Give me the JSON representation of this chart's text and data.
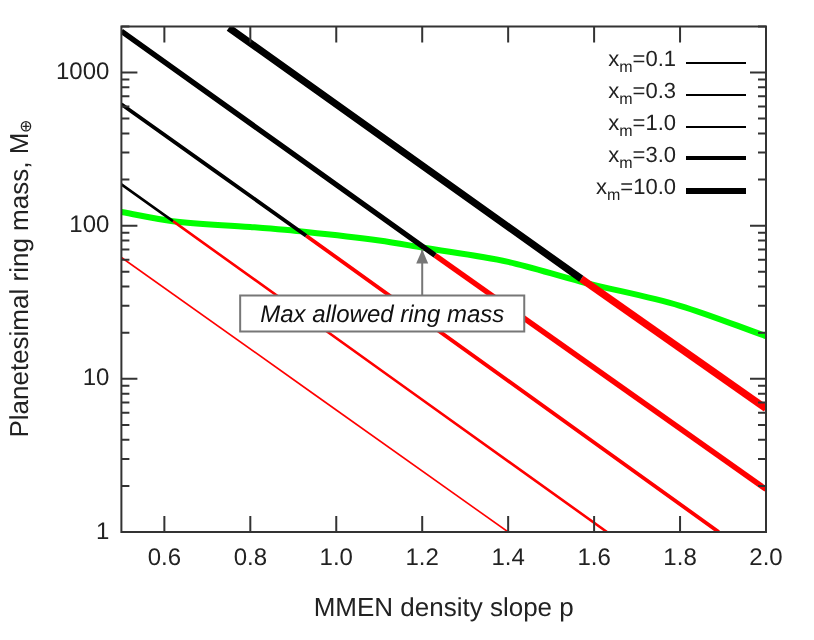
{
  "chart_data": {
    "type": "line",
    "xlabel": "MMEN density slope p",
    "ylabel": "Planetesimal ring mass, M$_{⊕}$",
    "log": "y",
    "xlim": [
      0.5,
      2.0
    ],
    "ylim": [
      1,
      2000
    ],
    "xticks": [
      0.6,
      0.8,
      {
        "value": 1,
        "label": "1.0"
      },
      1.2,
      1.4,
      1.6,
      1.8,
      {
        "value": 2,
        "label": "2.0"
      }
    ],
    "yticks": [
      1,
      {
        "value": 2,
        "label": null
      },
      {
        "value": 3,
        "label": null
      },
      {
        "value": 4,
        "label": null
      },
      {
        "value": 5,
        "label": null
      },
      {
        "value": 6,
        "label": null
      },
      {
        "value": 7,
        "label": null
      },
      {
        "value": 8,
        "label": null
      },
      {
        "value": 9,
        "label": null
      },
      10,
      {
        "value": 20,
        "label": null
      },
      {
        "value": 30,
        "label": null
      },
      {
        "value": 40,
        "label": null
      },
      {
        "value": 50,
        "label": null
      },
      {
        "value": 60,
        "label": null
      },
      {
        "value": 70,
        "label": null
      },
      {
        "value": 80,
        "label": null
      },
      {
        "value": 90,
        "label": null
      },
      100,
      {
        "value": 200,
        "label": null
      },
      {
        "value": 300,
        "label": null
      },
      {
        "value": 400,
        "label": null
      },
      {
        "value": 500,
        "label": null
      },
      {
        "value": 600,
        "label": null
      },
      {
        "value": 700,
        "label": null
      },
      {
        "value": 800,
        "label": null
      },
      {
        "value": 900,
        "label": null
      },
      1000,
      {
        "value": 2000,
        "label": null
      }
    ],
    "legend": "top right",
    "series": [
      {
        "name": "x$_{m}$=0.1",
        "color": "#000000"
      },
      {
        "name": "x$_{m}$=0.3",
        "color": "#000000",
        "x": [
          0.5,
          0.62
        ],
        "values": [
          186,
          107
        ]
      },
      {
        "name": "x$_{m}$=1.0",
        "color": "#000000",
        "x": [
          0.5,
          0.93
        ],
        "values": [
          620,
          86
        ]
      },
      {
        "name": "x$_{m}$=3.0",
        "color": "#000000",
        "x": [
          0.5,
          1.23
        ],
        "values": [
          1860,
          64
        ]
      },
      {
        "name": "x$_{m}$=10.0",
        "color": "#000000",
        "x": [
          0.75,
          1.57
        ],
        "values": [
          1960,
          45
        ]
      },
      {
        "color": "#ff0000",
        "x": [
          0.5,
          1.4
        ],
        "values": [
          62,
          1
        ]
      },
      {
        "color": "#ff0000",
        "x": [
          0.62,
          1.63
        ],
        "values": [
          107,
          1
        ]
      },
      {
        "color": "#ff0000",
        "x": [
          0.93,
          1.89
        ],
        "values": [
          86,
          1
        ]
      },
      {
        "color": "#ff0000",
        "x": [
          1.23,
          2.0
        ],
        "values": [
          64,
          1.9
        ]
      },
      {
        "color": "#ff0000",
        "x": [
          1.57,
          2.0
        ],
        "values": [
          45,
          6.4
        ]
      },
      {
        "color": "#00ff00",
        "x": [
          0.5,
          0.62,
          0.8,
          0.93,
          1.1,
          1.2,
          1.4,
          1.57,
          1.8,
          2.0
        ],
        "values": [
          123,
          107,
          98,
          91,
          80,
          72,
          58,
          43,
          30,
          19
        ]
      }
    ],
    "annotations": [
      {
        "text": "Max allowed ring mass",
        "x": 1.2,
        "y": 72
      }
    ]
  }
}
